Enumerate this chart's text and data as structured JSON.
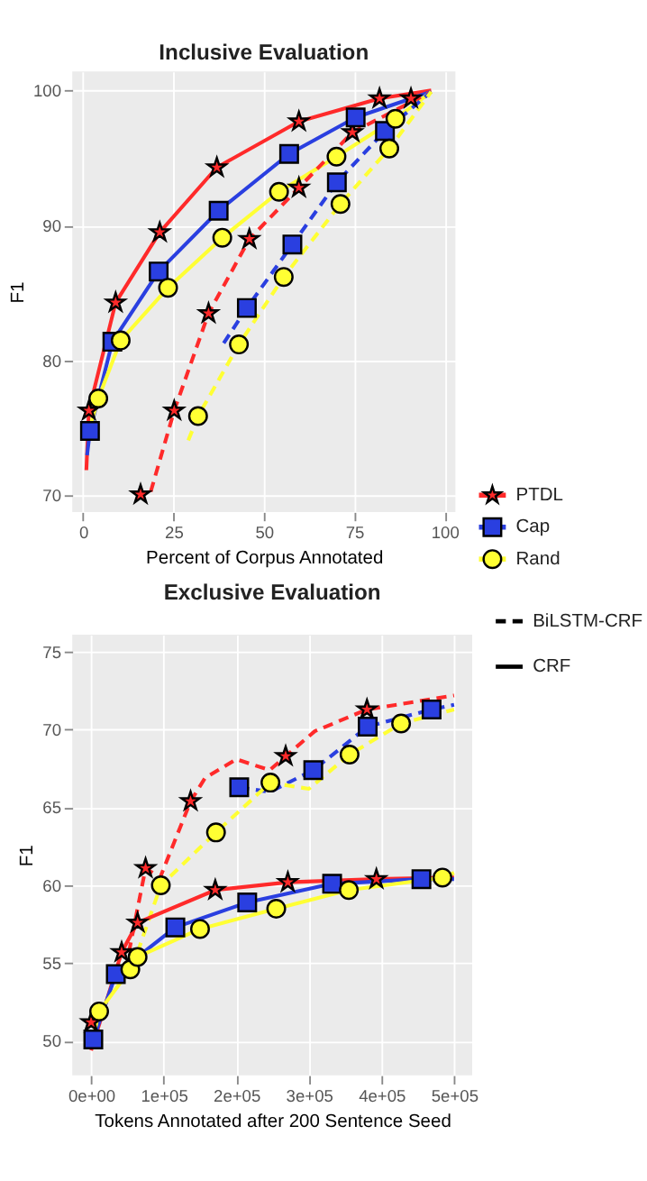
{
  "chart_data": [
    {
      "type": "line",
      "title": "Inclusive Evaluation",
      "xlabel": "Percent of Corpus Annotated",
      "ylabel": "F1",
      "xlim": [
        -3,
        103
      ],
      "ylim": [
        68.8,
        101.4
      ],
      "xticks": [
        0,
        25,
        50,
        75,
        100
      ],
      "yticks": [
        70,
        80,
        90,
        100
      ],
      "grid": true,
      "legend": "right",
      "series": [
        {
          "color": "#ff2a2a",
          "line_style": "solid",
          "marker": "none",
          "x": [
            0.9,
            1.6,
            9,
            21.2,
            37,
            59.7,
            82,
            96.3
          ],
          "values": [
            71.9,
            76.3,
            84.3,
            89.5,
            94.3,
            97.7,
            99.4,
            100
          ]
        },
        {
          "color": "#2a3fe0",
          "line_style": "solid",
          "marker": "none",
          "x": [
            1.1,
            1.9,
            8.1,
            20.9,
            37.5,
            57,
            75.4,
            96.3
          ],
          "values": [
            73,
            74.8,
            81.4,
            86.6,
            91.1,
            95.3,
            98.0,
            99.9
          ]
        },
        {
          "color": "#ffff33",
          "line_style": "solid",
          "marker": "none",
          "x": [
            1.6,
            4.2,
            10.4,
            23.5,
            38.5,
            54.2,
            70.1,
            86.4,
            96.3
          ],
          "values": [
            74.8,
            77.2,
            81.5,
            85.4,
            89.1,
            92.5,
            95.1,
            97.9,
            99.9
          ]
        },
        {
          "color": "#ff2a2a",
          "line_style": "dashed",
          "marker": "none",
          "x": [
            18.7,
            25.2,
            34.7,
            46,
            59.7,
            74.5,
            96.3
          ],
          "values": [
            70.3,
            76.3,
            83.5,
            89,
            92.8,
            96.9,
            99.9
          ]
        },
        {
          "color": "#2a3fe0",
          "line_style": "dashed",
          "marker": "none",
          "x": [
            38.9,
            45.3,
            57.9,
            70.2,
            83.5,
            96.3
          ],
          "values": [
            81.3,
            83.9,
            88.6,
            93.2,
            97.0,
            99.9
          ]
        },
        {
          "color": "#ffff33",
          "line_style": "dashed",
          "marker": "none",
          "x": [
            29.1,
            31.8,
            43.1,
            55.5,
            71.2,
            84.7,
            96.3
          ],
          "values": [
            74.1,
            75.9,
            81.2,
            86.2,
            91.6,
            95.7,
            99.9
          ]
        },
        {
          "type": "scatter",
          "name": "PTDL",
          "color": "#ff2a2a",
          "marker": "star",
          "x": [
            1.6,
            9,
            21.2,
            37,
            59.7,
            82,
            90.7,
            15.9,
            25.2,
            34.7,
            46,
            59.7,
            74.5
          ],
          "values": [
            76.3,
            84.3,
            89.5,
            94.3,
            97.7,
            99.4,
            99.4,
            70.1,
            76.3,
            83.5,
            89,
            92.8,
            96.9
          ]
        },
        {
          "type": "scatter",
          "name": "Cap",
          "color": "#2a3fe0",
          "marker": "square",
          "x": [
            1.9,
            8.1,
            20.9,
            37.5,
            57,
            75.4,
            45.3,
            57.9,
            70.2,
            83.5
          ],
          "values": [
            74.8,
            81.4,
            86.6,
            91.1,
            95.3,
            98.0,
            83.9,
            88.6,
            93.2,
            97.0
          ]
        },
        {
          "type": "scatter",
          "name": "Rand",
          "color": "#ffff33",
          "marker": "circle",
          "x": [
            4.2,
            10.4,
            23.5,
            38.5,
            54.2,
            70.1,
            86.4,
            31.8,
            43.1,
            55.5,
            71.2,
            84.7
          ],
          "values": [
            77.2,
            81.5,
            85.4,
            89.1,
            92.5,
            95.1,
            97.9,
            75.9,
            81.2,
            86.2,
            91.6,
            95.7
          ]
        }
      ]
    },
    {
      "type": "line",
      "title": "Exclusive Evaluation",
      "annotations": [
        "BiLSTM-CRF",
        "CRF"
      ],
      "xlabel": "Tokens Annotated after 200 Sentence Seed",
      "ylabel": "F1",
      "xlim": [
        -26000,
        525000
      ],
      "ylim": [
        47.8,
        76.1
      ],
      "xticks": [
        {
          "value": 0,
          "label": "0e+00"
        },
        {
          "value": 100000,
          "label": "1e+05"
        },
        {
          "value": 200000,
          "label": "2e+05"
        },
        {
          "value": 300000,
          "label": "3e+05"
        },
        {
          "value": 400000,
          "label": "4e+05"
        },
        {
          "value": 500000,
          "label": "5e+05"
        }
      ],
      "yticks": [
        50,
        55,
        60,
        65,
        70,
        75
      ],
      "grid": true,
      "legend": "right",
      "series": [
        {
          "color": "#ff2a2a",
          "line_style": "dashed",
          "marker": "none",
          "x": [
            52000,
            75000,
            95000,
            137000,
            157000,
            200000,
            246000,
            268000,
            308000,
            380000,
            500000
          ],
          "values": [
            55.7,
            61.1,
            60.5,
            65.4,
            66.9,
            68.1,
            67.4,
            68.3,
            69.9,
            71.3,
            72.2
          ]
        },
        {
          "color": "#2a3fe0",
          "line_style": "dashed",
          "marker": "none",
          "x": [
            204000,
            246000,
            306000,
            381000,
            469000,
            500000
          ],
          "values": [
            66.3,
            66.0,
            67.4,
            70.2,
            71.3,
            71.6
          ]
        },
        {
          "color": "#ffff33",
          "line_style": "dashed",
          "marker": "none",
          "x": [
            64000,
            96000,
            172000,
            247000,
            300000,
            356000,
            427000,
            500000
          ],
          "values": [
            55.7,
            60.0,
            63.4,
            66.6,
            66.2,
            68.4,
            70.4,
            71.3
          ]
        },
        {
          "color": "#ff2a2a",
          "line_style": "solid",
          "marker": "none",
          "x": [
            0,
            42000,
            64000,
            171000,
            271000,
            393000,
            500000
          ],
          "values": [
            49.4,
            55.7,
            57.6,
            59.7,
            60.2,
            60.4,
            60.5
          ]
        },
        {
          "color": "#2a3fe0",
          "line_style": "solid",
          "marker": "none",
          "x": [
            0,
            3000,
            34000,
            116000,
            215000,
            332000,
            455000,
            500000
          ],
          "values": [
            50.0,
            50.1,
            54.3,
            57.3,
            58.9,
            60.1,
            60.4,
            60.4
          ]
        },
        {
          "color": "#ffff33",
          "line_style": "solid",
          "marker": "none",
          "x": [
            0,
            11000,
            54000,
            64000,
            150000,
            255000,
            355000,
            484000,
            500000
          ],
          "values": [
            49.7,
            51.9,
            54.6,
            55.4,
            57.2,
            58.5,
            59.7,
            60.5,
            60.8
          ]
        },
        {
          "type": "scatter",
          "color": "#ff2a2a",
          "marker": "star",
          "x": [
            0,
            42000,
            64000,
            171000,
            271000,
            393000,
            75000,
            137000,
            268000,
            380000
          ],
          "values": [
            51.2,
            55.7,
            57.6,
            59.7,
            60.2,
            60.4,
            61.1,
            65.4,
            68.3,
            71.3
          ]
        },
        {
          "type": "scatter",
          "color": "#2a3fe0",
          "marker": "square",
          "x": [
            3000,
            34000,
            116000,
            215000,
            332000,
            455000,
            204000,
            306000,
            381000,
            469000
          ],
          "values": [
            50.1,
            54.3,
            57.3,
            58.9,
            60.1,
            60.4,
            66.3,
            67.4,
            70.2,
            71.3
          ]
        },
        {
          "type": "scatter",
          "color": "#ffff33",
          "marker": "circle",
          "x": [
            11000,
            54000,
            64000,
            150000,
            255000,
            355000,
            484000,
            96000,
            172000,
            247000,
            356000,
            427000
          ],
          "values": [
            51.9,
            54.6,
            55.4,
            57.2,
            58.5,
            59.7,
            60.5,
            60.0,
            63.4,
            66.6,
            68.4,
            70.4
          ]
        }
      ]
    }
  ]
}
